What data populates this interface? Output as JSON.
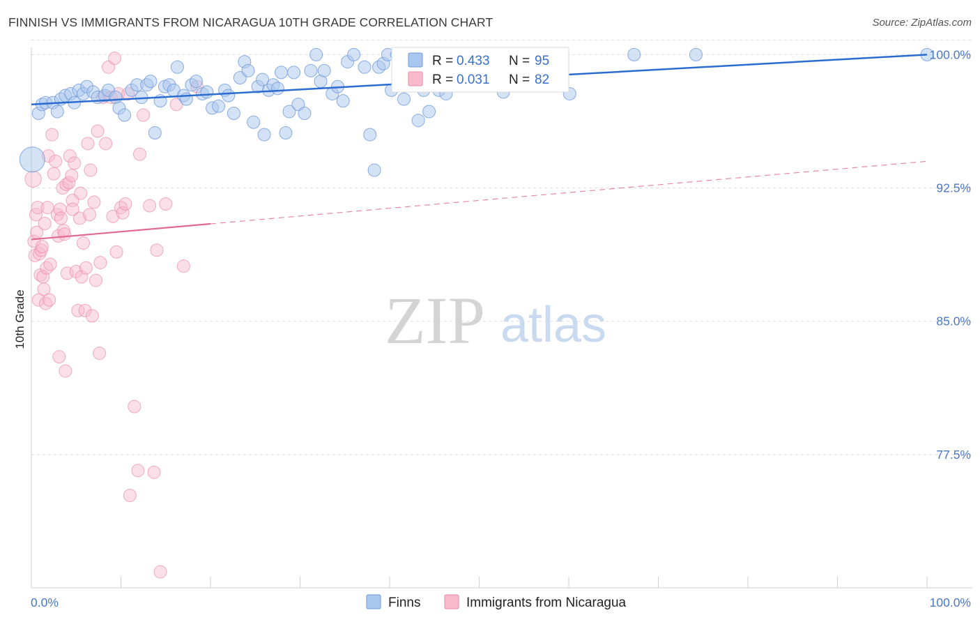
{
  "header": {
    "title": "FINNISH VS IMMIGRANTS FROM NICARAGUA 10TH GRADE CORRELATION CHART",
    "source": "Source: ZipAtlas.com"
  },
  "watermark": {
    "zip": "ZIP",
    "atlas": "atlas"
  },
  "colors": {
    "blue_fill": "#a9c6ee",
    "blue_stroke": "#6f9ad8",
    "blue_line": "#2a6ccf",
    "pink_fill": "#f7b9cc",
    "pink_stroke": "#e98aa8",
    "pink_line": "#e06892",
    "grid": "#dcdcdc",
    "tick_text": "#4a78c8"
  },
  "legend": {
    "rows": [
      {
        "r_label": "R = ",
        "r_value": "0.433",
        "n_label": "N = ",
        "n_value": "95"
      },
      {
        "r_label": "R = ",
        "r_value": "0.031",
        "n_label": "N = ",
        "n_value": "82"
      }
    ]
  },
  "chart_data": {
    "type": "scatter",
    "title": "FINNISH VS IMMIGRANTS FROM NICARAGUA 10TH GRADE CORRELATION CHART",
    "xlabel": "",
    "ylabel": "10th Grade",
    "xlim": [
      0,
      100
    ],
    "ylim": [
      70.0,
      100.8
    ],
    "x_tick_labels": [
      "0.0%",
      "100.0%"
    ],
    "y_ticks": [
      100.0,
      92.5,
      85.0,
      77.5
    ],
    "y_tick_labels": [
      "100.0%",
      "92.5%",
      "85.0%",
      "77.5%"
    ],
    "series": [
      {
        "name": "Finns",
        "color": "#a9c6ee",
        "R": 0.433,
        "N": 95,
        "trend": {
          "x0": 0,
          "y0": 97.2,
          "x1": 100,
          "y1": 100.0,
          "dashed_from": null
        },
        "points": [
          [
            0.1,
            94.1,
            2.0
          ],
          [
            0.8,
            96.7,
            1
          ],
          [
            1.2,
            97.2,
            1
          ],
          [
            1.6,
            97.3,
            1
          ],
          [
            2.4,
            97.3,
            1
          ],
          [
            2.9,
            96.8,
            1
          ],
          [
            3.3,
            97.5,
            1
          ],
          [
            3.8,
            97.7,
            1
          ],
          [
            4.4,
            97.8,
            1
          ],
          [
            4.8,
            97.3,
            1
          ],
          [
            5.3,
            98.0,
            1
          ],
          [
            5.8,
            97.8,
            1
          ],
          [
            6.2,
            98.2,
            1
          ],
          [
            6.9,
            97.9,
            1
          ],
          [
            7.4,
            97.6,
            1
          ],
          [
            8.2,
            97.7,
            1
          ],
          [
            8.6,
            98.0,
            1
          ],
          [
            9.4,
            97.6,
            1
          ],
          [
            9.8,
            97.0,
            1
          ],
          [
            10.4,
            96.6,
            1
          ],
          [
            11.2,
            98.0,
            1
          ],
          [
            11.8,
            98.3,
            1
          ],
          [
            12.3,
            97.6,
            1
          ],
          [
            12.9,
            98.3,
            1
          ],
          [
            13.3,
            98.5,
            1
          ],
          [
            13.8,
            95.6,
            1
          ],
          [
            14.4,
            97.4,
            1
          ],
          [
            14.9,
            98.2,
            1
          ],
          [
            15.4,
            98.3,
            1
          ],
          [
            15.9,
            98.0,
            1
          ],
          [
            16.3,
            99.3,
            1
          ],
          [
            17.0,
            97.7,
            1
          ],
          [
            17.3,
            97.5,
            1
          ],
          [
            17.9,
            98.3,
            1
          ],
          [
            18.4,
            98.5,
            1
          ],
          [
            19.1,
            97.8,
            1
          ],
          [
            19.6,
            97.9,
            1
          ],
          [
            20.2,
            97.0,
            1
          ],
          [
            20.9,
            97.1,
            1
          ],
          [
            21.6,
            98.0,
            1
          ],
          [
            22.0,
            97.7,
            1
          ],
          [
            22.6,
            96.7,
            1
          ],
          [
            23.3,
            98.7,
            1
          ],
          [
            23.8,
            99.6,
            1
          ],
          [
            24.2,
            99.1,
            1
          ],
          [
            24.8,
            96.2,
            1
          ],
          [
            25.3,
            98.2,
            1
          ],
          [
            25.8,
            98.6,
            1
          ],
          [
            26.0,
            95.5,
            1
          ],
          [
            26.5,
            98.0,
            1
          ],
          [
            27.0,
            98.3,
            1
          ],
          [
            27.5,
            98.1,
            1
          ],
          [
            27.9,
            99.0,
            1
          ],
          [
            28.4,
            95.6,
            1
          ],
          [
            28.8,
            96.8,
            1
          ],
          [
            29.3,
            99.0,
            1
          ],
          [
            29.8,
            97.2,
            1
          ],
          [
            30.5,
            96.7,
            1
          ],
          [
            31.2,
            99.1,
            1
          ],
          [
            31.8,
            100.0,
            1
          ],
          [
            32.3,
            98.5,
            1
          ],
          [
            32.7,
            99.1,
            1
          ],
          [
            33.6,
            97.8,
            1
          ],
          [
            34.2,
            98.2,
            1
          ],
          [
            34.8,
            97.4,
            1
          ],
          [
            35.3,
            99.6,
            1
          ],
          [
            36.0,
            100.0,
            1
          ],
          [
            37.2,
            99.3,
            1
          ],
          [
            37.8,
            95.5,
            1
          ],
          [
            38.3,
            93.5,
            1
          ],
          [
            38.8,
            99.3,
            1
          ],
          [
            39.3,
            99.5,
            1
          ],
          [
            39.8,
            100.0,
            1
          ],
          [
            40.2,
            98.0,
            1
          ],
          [
            40.8,
            100.0,
            1
          ],
          [
            41.6,
            97.5,
            1
          ],
          [
            42.0,
            98.7,
            1
          ],
          [
            43.2,
            96.3,
            1
          ],
          [
            43.8,
            98.0,
            1
          ],
          [
            44.4,
            96.8,
            1
          ],
          [
            45.0,
            98.6,
            1
          ],
          [
            45.5,
            98.0,
            1
          ],
          [
            46.3,
            97.8,
            1
          ],
          [
            47.2,
            100.0,
            1
          ],
          [
            49.3,
            100.0,
            1
          ],
          [
            51.0,
            100.0,
            1
          ],
          [
            52.7,
            97.9,
            1
          ],
          [
            56.4,
            100.0,
            1
          ],
          [
            58.1,
            100.0,
            1
          ],
          [
            60.1,
            97.8,
            1
          ],
          [
            67.3,
            100.0,
            1
          ],
          [
            74.2,
            100.0,
            1
          ],
          [
            100.0,
            100.0,
            1
          ]
        ]
      },
      {
        "name": "Immigrants from Nicaragua",
        "color": "#f7b9cc",
        "R": 0.031,
        "N": 82,
        "trend": {
          "x0": 0,
          "y0": 89.6,
          "x1": 100,
          "y1": 94.0,
          "dashed_from": 20
        },
        "points": [
          [
            0.2,
            93.0,
            1.3
          ],
          [
            0.3,
            89.5,
            1
          ],
          [
            0.4,
            88.7,
            1
          ],
          [
            0.5,
            91.0,
            1
          ],
          [
            0.6,
            90.0,
            1
          ],
          [
            0.7,
            91.4,
            1
          ],
          [
            0.8,
            86.2,
            1
          ],
          [
            0.9,
            88.8,
            1
          ],
          [
            1.0,
            87.6,
            1
          ],
          [
            1.1,
            89.0,
            1
          ],
          [
            1.2,
            89.2,
            1
          ],
          [
            1.3,
            87.5,
            1
          ],
          [
            1.4,
            86.8,
            1
          ],
          [
            1.5,
            90.5,
            1
          ],
          [
            1.6,
            86.0,
            1
          ],
          [
            1.7,
            88.0,
            1
          ],
          [
            1.8,
            91.4,
            1
          ],
          [
            1.9,
            94.3,
            1
          ],
          [
            2.0,
            86.2,
            1
          ],
          [
            2.1,
            88.2,
            1
          ],
          [
            2.3,
            95.5,
            1
          ],
          [
            2.5,
            93.3,
            1
          ],
          [
            2.7,
            94.0,
            1
          ],
          [
            2.9,
            91.0,
            1
          ],
          [
            3.0,
            89.8,
            1
          ],
          [
            3.1,
            83.0,
            1
          ],
          [
            3.2,
            91.3,
            1
          ],
          [
            3.3,
            90.8,
            1
          ],
          [
            3.5,
            92.5,
            1
          ],
          [
            3.6,
            90.1,
            1
          ],
          [
            3.8,
            82.2,
            1
          ],
          [
            3.9,
            92.7,
            1
          ],
          [
            4.0,
            87.7,
            1
          ],
          [
            4.2,
            92.8,
            1
          ],
          [
            4.3,
            94.3,
            1
          ],
          [
            4.5,
            93.2,
            1
          ],
          [
            4.6,
            91.8,
            1
          ],
          [
            4.8,
            93.9,
            1
          ],
          [
            5.0,
            87.8,
            1
          ],
          [
            5.2,
            85.6,
            1
          ],
          [
            5.4,
            90.8,
            1
          ],
          [
            5.5,
            92.2,
            1
          ],
          [
            5.6,
            87.5,
            1
          ],
          [
            5.8,
            89.4,
            1
          ],
          [
            6.0,
            85.6,
            1
          ],
          [
            6.1,
            88.0,
            1
          ],
          [
            6.3,
            95.0,
            1
          ],
          [
            6.5,
            91.0,
            1
          ],
          [
            6.6,
            93.5,
            1
          ],
          [
            6.8,
            85.3,
            1
          ],
          [
            7.0,
            91.7,
            1
          ],
          [
            7.2,
            87.3,
            1
          ],
          [
            7.4,
            95.7,
            1
          ],
          [
            7.6,
            83.2,
            1
          ],
          [
            7.7,
            88.3,
            1
          ],
          [
            8.0,
            97.6,
            1
          ],
          [
            8.3,
            95.0,
            1
          ],
          [
            8.6,
            99.3,
            1
          ],
          [
            8.9,
            97.6,
            1
          ],
          [
            9.1,
            90.9,
            1
          ],
          [
            9.3,
            99.8,
            1
          ],
          [
            9.5,
            88.9,
            1
          ],
          [
            9.7,
            97.8,
            1
          ],
          [
            10.0,
            91.4,
            1
          ],
          [
            10.2,
            91.1,
            1
          ],
          [
            10.5,
            91.6,
            1
          ],
          [
            10.8,
            97.8,
            1
          ],
          [
            11.0,
            75.2,
            1
          ],
          [
            11.5,
            80.2,
            1
          ],
          [
            11.9,
            76.6,
            1
          ],
          [
            12.1,
            94.4,
            1
          ],
          [
            12.5,
            96.6,
            1
          ],
          [
            13.2,
            91.5,
            1
          ],
          [
            13.7,
            76.5,
            1
          ],
          [
            14.0,
            89.0,
            1
          ],
          [
            14.4,
            70.9,
            1
          ],
          [
            15.0,
            91.6,
            1
          ],
          [
            16.2,
            97.2,
            1
          ],
          [
            17.0,
            88.1,
            1
          ],
          [
            18.5,
            98.2,
            1
          ],
          [
            4.6,
            91.3,
            1
          ],
          [
            3.7,
            89.9,
            1
          ]
        ]
      }
    ]
  },
  "bottom_legend": [
    {
      "label": "Finns"
    },
    {
      "label": "Immigrants from Nicaragua"
    }
  ]
}
